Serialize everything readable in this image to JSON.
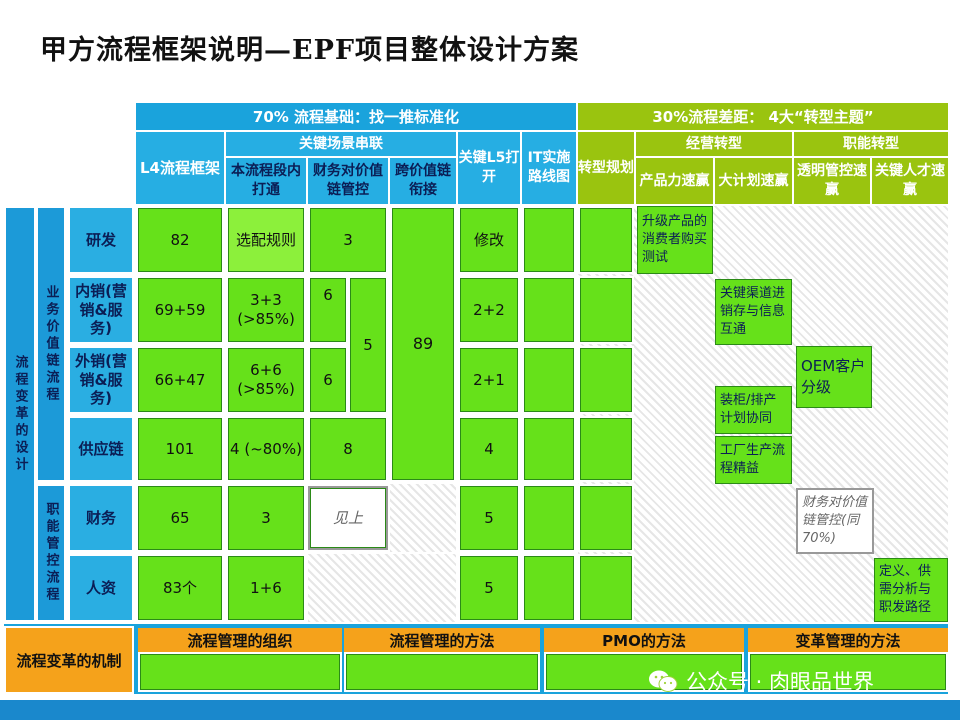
{
  "title": "甲方流程框架说明—EPF项目整体设计方案",
  "headers": {
    "left_banner": "70% 流程基础：找一推标准化",
    "right_banner": "30%流程差距：  4大“转型主题”",
    "l4": "L4流程框架",
    "key_scene": "关键场景串联",
    "scene_a": "本流程段内打通",
    "scene_b": "财务对价值链管控",
    "scene_c": "跨价值链衔接",
    "key_l5": "关键L5打开",
    "it": "IT实施路线图",
    "transform": "转型规划",
    "biz": "经营转型",
    "func": "职能转型",
    "product": "产品力速赢",
    "plan": "大计划速赢",
    "transparent": "透明管控速赢",
    "people": "关键人才速赢"
  },
  "side": {
    "outer": "流程变革的设计",
    "biz": "业务价值链流程",
    "func": "职能管控流程"
  },
  "rows": [
    {
      "label": "研发",
      "l4": "82",
      "scene_a": "选配规则",
      "scene_b": "3",
      "l5": "修改"
    },
    {
      "label": "内销(营销&服务)",
      "l4": "69+59",
      "scene_a": "3+3 (>85%)",
      "scene_b": "6",
      "l5": "2+2"
    },
    {
      "label": "外销(营销&服务)",
      "l4": "66+47",
      "scene_a": "6+6 (>85%)",
      "scene_b": "6",
      "l5": "2+1"
    },
    {
      "label": "供应链",
      "l4": "101",
      "scene_a": "4 (~80%)",
      "scene_b": "8",
      "l5": "4"
    },
    {
      "label": "财务",
      "l4": "65",
      "scene_a": "3",
      "scene_b": "见上",
      "l5": "5"
    },
    {
      "label": "人资",
      "l4": "83个",
      "scene_a": "1+6",
      "l5": "5"
    }
  ],
  "merged": {
    "scene_b_56": "5",
    "scene_c": "89"
  },
  "notes": {
    "product": "升级产品的消费者购买测试",
    "plan1": "关键渠道进销存与信息互通",
    "oem": "OEM客户分级",
    "plan2": "装柜/排产计划协同",
    "plan3": "工厂生产流程精益",
    "finance": "财务对价值链管控(同70%)",
    "people": "定义、供需分析与职发路径"
  },
  "footer": {
    "mechanism": "流程变革的机制",
    "org": "流程管理的组织",
    "method": "流程管理的方法",
    "pmo": "PMO的方法",
    "change": "变革管理的方法"
  },
  "watermark": "公众号 · 肉眼品世界"
}
